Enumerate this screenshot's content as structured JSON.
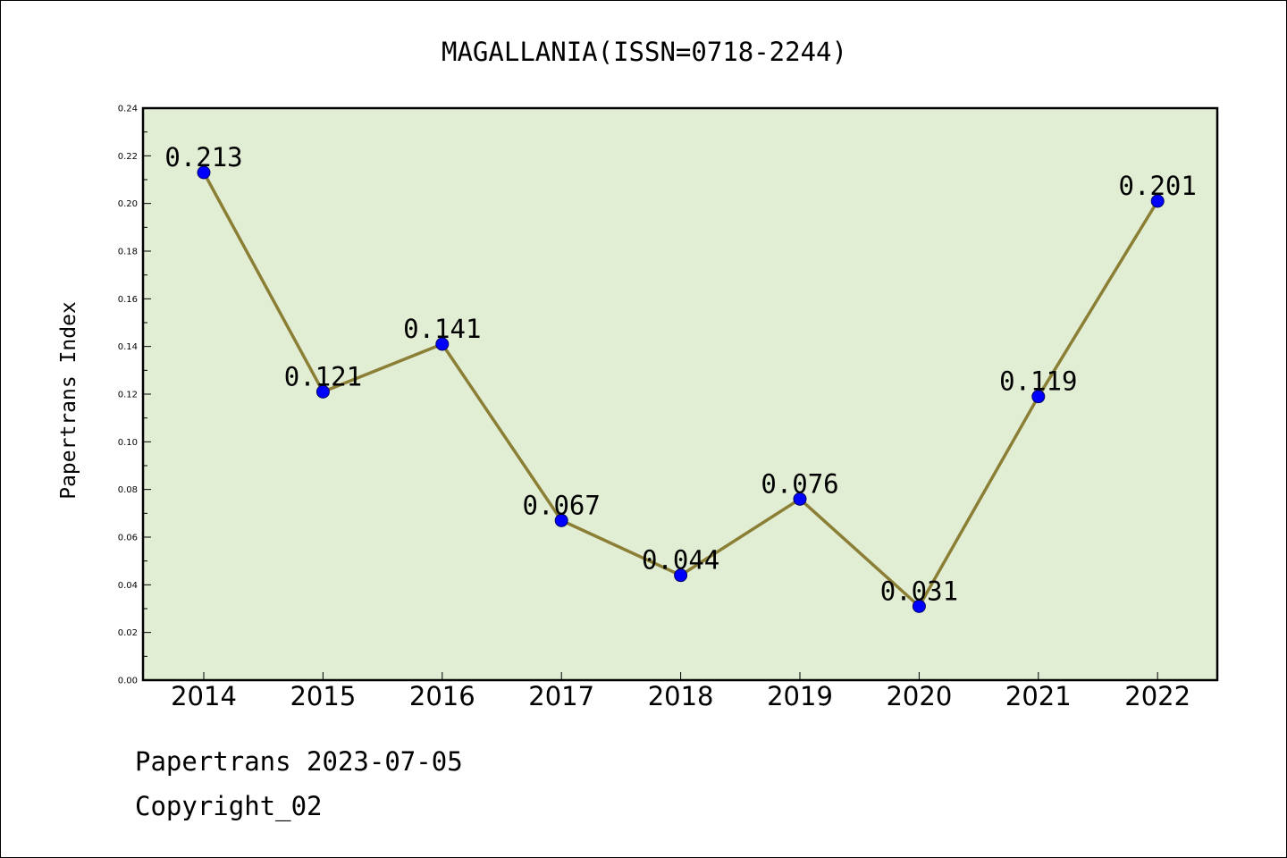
{
  "chart_data": {
    "type": "line",
    "title": "MAGALLANIA(ISSN=0718-2244)",
    "xlabel": "",
    "ylabel": "Papertrans Index",
    "categories": [
      "2014",
      "2015",
      "2016",
      "2017",
      "2018",
      "2019",
      "2020",
      "2021",
      "2022"
    ],
    "values": [
      0.213,
      0.121,
      0.141,
      0.067,
      0.044,
      0.076,
      0.031,
      0.119,
      0.201
    ],
    "data_labels": [
      "0.213",
      "0.121",
      "0.141",
      "0.067",
      "0.044",
      "0.076",
      "0.031",
      "0.119",
      "0.201"
    ],
    "ylim": [
      0.0,
      0.24
    ],
    "yticks": [
      "0.00",
      "0.02",
      "0.04",
      "0.06",
      "0.08",
      "0.10",
      "0.12",
      "0.14",
      "0.16",
      "0.18",
      "0.20",
      "0.22",
      "0.24"
    ],
    "grid": false,
    "legend": "none",
    "colors": {
      "plot_background": "#e1eed4",
      "line": "#8b7e35",
      "marker": "#0000ff"
    }
  },
  "footer": {
    "source": "Papertrans 2023-07-05",
    "copyright": "Copyright_02"
  }
}
